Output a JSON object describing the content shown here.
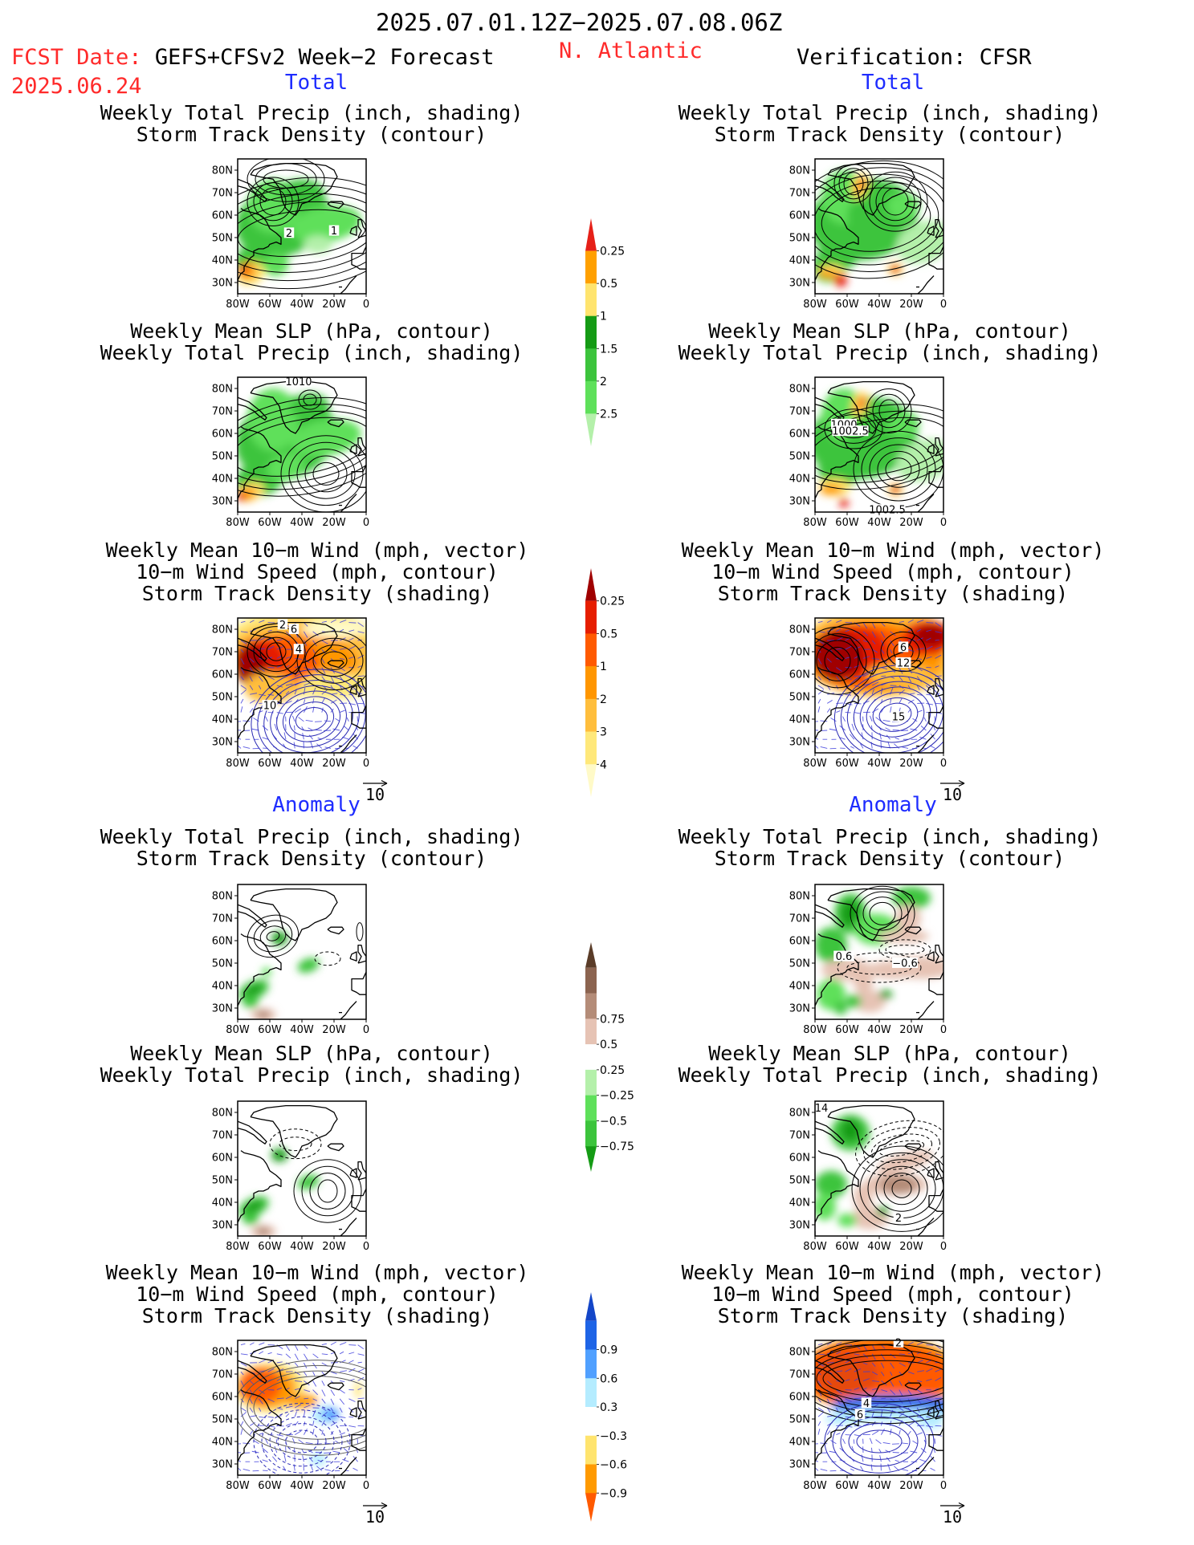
{
  "header": {
    "date_range": "2025.07.01.12Z−2025.07.08.06Z",
    "fcst_line": "FCST Date: GEFS+CFSv2 Week−2 Forecast",
    "fcst_date": "2025.06.24",
    "region": "N. Atlantic",
    "verification": "Verification: CFSR"
  },
  "sections": {
    "total": "Total",
    "anomaly": "Anomaly"
  },
  "titles": {
    "precip_storm": [
      "Weekly Total Precip (inch, shading)",
      "Storm Track Density (contour)"
    ],
    "slp_precip": [
      "Weekly Mean SLP (hPa, contour)",
      "Weekly Total Precip (inch, shading)"
    ],
    "wind_storm": [
      "Weekly Mean 10−m Wind (mph, vector)",
      "10−m Wind Speed (mph, contour)",
      "Storm Track Density (shading)"
    ]
  },
  "axes": {
    "lat_ticks": [
      "80N",
      "70N",
      "60N",
      "50N",
      "40N",
      "30N"
    ],
    "lon_ticks": [
      "80W",
      "60W",
      "40W",
      "20W",
      "0"
    ]
  },
  "vector_ref": "10",
  "contour_labels": {
    "p1l": [
      "2",
      "1"
    ],
    "p1r": [],
    "p2l": [
      "1010"
    ],
    "p2r": [
      "1000",
      "1002.5",
      "1002.5"
    ],
    "p3l": [
      "2",
      "6",
      "4",
      "10"
    ],
    "p3r": [
      "6",
      "12",
      "15"
    ],
    "p4l": [],
    "p4r": [
      "0.6",
      "−0.6"
    ],
    "p5l": [],
    "p5r": [
      "14",
      "2"
    ],
    "p6l": [],
    "p6r": [
      "2",
      "4",
      "6"
    ]
  },
  "colorbars": {
    "precip_total": {
      "labels": [
        "0.25",
        "0.5",
        "1",
        "1.5",
        "2",
        "2.5"
      ],
      "colors": [
        "#b4f0aa",
        "#5ee05a",
        "#3cc43c",
        "#159b15",
        "#ffe46e",
        "#ffa000",
        "#e62018"
      ]
    },
    "storm_total": {
      "labels": [
        "0.25",
        "0.5",
        "1",
        "2",
        "3",
        "4"
      ],
      "colors": [
        "#fffac8",
        "#ffe87a",
        "#ffbe3c",
        "#ff9600",
        "#ff5a00",
        "#e61e00",
        "#a00000"
      ]
    },
    "precip_anom": {
      "labels": [
        "0.75",
        "0.5",
        "0.25",
        "−0.25",
        "−0.5",
        "−0.75"
      ],
      "colors": [
        "#159b15",
        "#3cc43c",
        "#5ee05a",
        "#b4f0aa",
        "#ffffff",
        "#e6c3b4",
        "#b48c78",
        "#8c6450",
        "#5a3c28"
      ]
    },
    "storm_anom": {
      "labels": [
        "0.9",
        "0.6",
        "0.3",
        "−0.3",
        "−0.6",
        "−0.9"
      ],
      "colors": [
        "#ff5a00",
        "#ff9a00",
        "#ffe46e",
        "#ffffff",
        "#b4ecff",
        "#50a0ff",
        "#1e64e6",
        "#1446c8"
      ]
    }
  },
  "chart_data": [
    {
      "type": "heatmap",
      "panel": "Total forecast",
      "title": "Weekly Total Precip (inch, shading) / Storm Track Density (contour)",
      "x_range": [
        "80W",
        "0"
      ],
      "y_range": [
        "25N",
        "85N"
      ]
    },
    {
      "type": "heatmap",
      "panel": "Total verification",
      "title": "Weekly Total Precip (inch, shading) / Storm Track Density (contour)",
      "x_range": [
        "80W",
        "0"
      ],
      "y_range": [
        "25N",
        "85N"
      ]
    },
    {
      "type": "heatmap",
      "panel": "Total forecast",
      "title": "Weekly Mean SLP (hPa, contour) / Weekly Total Precip (inch, shading)",
      "x_range": [
        "80W",
        "0"
      ],
      "y_range": [
        "25N",
        "85N"
      ]
    },
    {
      "type": "heatmap",
      "panel": "Total verification",
      "title": "Weekly Mean SLP (hPa, contour) / Weekly Total Precip (inch, shading)",
      "x_range": [
        "80W",
        "0"
      ],
      "y_range": [
        "25N",
        "85N"
      ]
    },
    {
      "type": "heatmap",
      "panel": "Total forecast",
      "title": "Weekly Mean 10−m Wind (mph, vector) / 10−m Wind Speed (mph, contour) / Storm Track Density (shading)",
      "x_range": [
        "80W",
        "0"
      ],
      "y_range": [
        "25N",
        "85N"
      ]
    },
    {
      "type": "heatmap",
      "panel": "Total verification",
      "title": "Weekly Mean 10−m Wind (mph, vector) / 10−m Wind Speed (mph, contour) / Storm Track Density (shading)",
      "x_range": [
        "80W",
        "0"
      ],
      "y_range": [
        "25N",
        "85N"
      ]
    },
    {
      "type": "heatmap",
      "panel": "Anomaly forecast",
      "title": "Weekly Total Precip (inch, shading) / Storm Track Density (contour)",
      "x_range": [
        "80W",
        "0"
      ],
      "y_range": [
        "25N",
        "85N"
      ]
    },
    {
      "type": "heatmap",
      "panel": "Anomaly verification",
      "title": "Weekly Total Precip (inch, shading) / Storm Track Density (contour)",
      "x_range": [
        "80W",
        "0"
      ],
      "y_range": [
        "25N",
        "85N"
      ]
    },
    {
      "type": "heatmap",
      "panel": "Anomaly forecast",
      "title": "Weekly Mean SLP (hPa, contour) / Weekly Total Precip (inch, shading)",
      "x_range": [
        "80W",
        "0"
      ],
      "y_range": [
        "25N",
        "85N"
      ]
    },
    {
      "type": "heatmap",
      "panel": "Anomaly verification",
      "title": "Weekly Mean SLP (hPa, contour) / Weekly Total Precip (inch, shading)",
      "x_range": [
        "80W",
        "0"
      ],
      "y_range": [
        "25N",
        "85N"
      ]
    },
    {
      "type": "heatmap",
      "panel": "Anomaly forecast",
      "title": "Weekly Mean 10−m Wind (mph, vector) / 10−m Wind Speed (mph, contour) / Storm Track Density (shading)",
      "x_range": [
        "80W",
        "0"
      ],
      "y_range": [
        "25N",
        "85N"
      ]
    },
    {
      "type": "heatmap",
      "panel": "Anomaly verification",
      "title": "Weekly Mean 10−m Wind (mph, vector) / 10−m Wind Speed (mph, contour) / Storm Track Density (shading)",
      "x_range": [
        "80W",
        "0"
      ],
      "y_range": [
        "25N",
        "85N"
      ]
    }
  ]
}
